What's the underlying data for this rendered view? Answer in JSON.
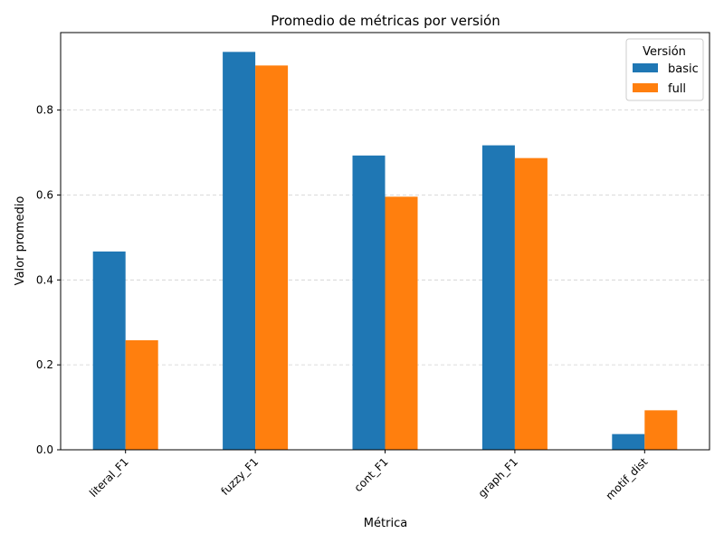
{
  "chart_data": {
    "type": "bar",
    "title": "Promedio de métricas por versión",
    "xlabel": "Métrica",
    "ylabel": "Valor promedio",
    "categories": [
      "literal_F1",
      "fuzzy_F1",
      "cont_F1",
      "graph_F1",
      "motif_dist"
    ],
    "series": [
      {
        "name": "basic",
        "color": "#1f77b4",
        "values": [
          0.467,
          0.937,
          0.693,
          0.717,
          0.037
        ]
      },
      {
        "name": "full",
        "color": "#ff7f0e",
        "values": [
          0.258,
          0.905,
          0.596,
          0.687,
          0.093
        ]
      }
    ],
    "ylim": [
      0,
      0.9825
    ],
    "yticks": [
      "0.0",
      "0.2",
      "0.4",
      "0.6",
      "0.8"
    ],
    "grid": "y-dashed",
    "legend": {
      "title": "Versión",
      "placement": "top-right"
    }
  }
}
